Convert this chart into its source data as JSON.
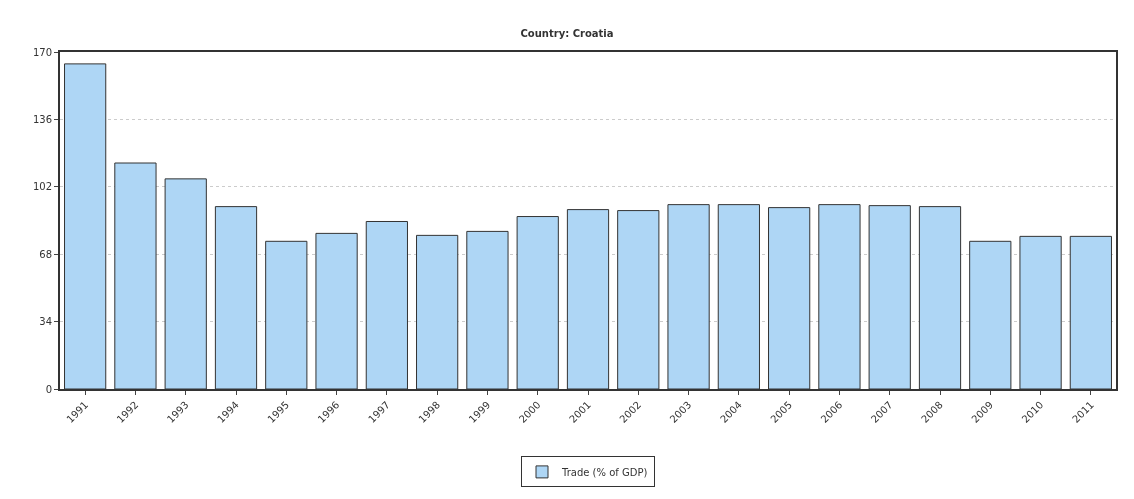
{
  "chart_data": {
    "type": "bar",
    "title": "Country: Croatia",
    "categories": [
      "1991",
      "1992",
      "1993",
      "1994",
      "1995",
      "1996",
      "1997",
      "1998",
      "1999",
      "2000",
      "2001",
      "2002",
      "2003",
      "2004",
      "2005",
      "2006",
      "2007",
      "2008",
      "2009",
      "2010",
      "2011"
    ],
    "series": [
      {
        "name": "Trade (% of GDP)",
        "color": "#aed6f5",
        "values": [
          164,
          114,
          106,
          92,
          74.5,
          78.5,
          84.5,
          77.5,
          79.5,
          87,
          90.5,
          90,
          93,
          93,
          91.5,
          93,
          92.5,
          92,
          74.5,
          77,
          77
        ]
      }
    ],
    "ylim": [
      0,
      170
    ],
    "yticks": [
      0,
      34,
      68,
      102,
      136,
      170
    ],
    "grid": "y",
    "legend": "bottom"
  }
}
